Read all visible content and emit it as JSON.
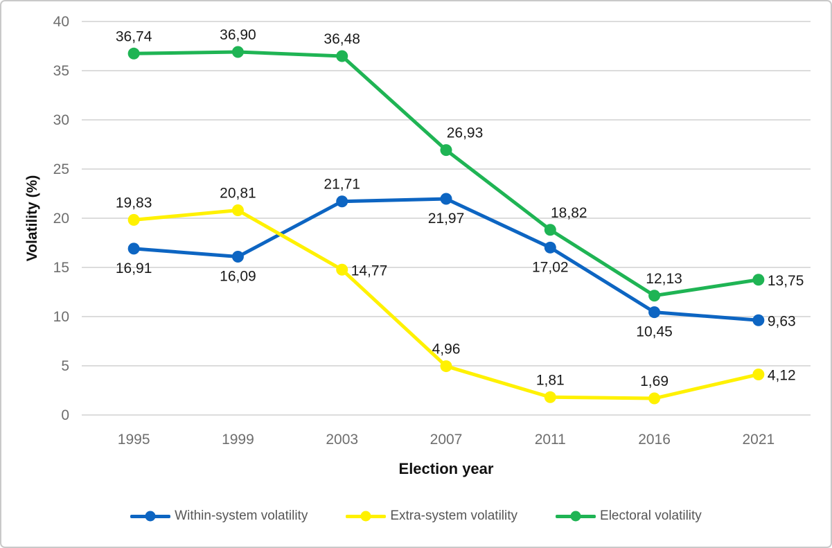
{
  "chart_data": {
    "type": "line",
    "title": "",
    "xlabel": "Election year",
    "ylabel": "Volatility (%)",
    "categories": [
      "1995",
      "1999",
      "2003",
      "2007",
      "2011",
      "2016",
      "2021"
    ],
    "ylim": [
      0,
      40
    ],
    "ytick_step": 5,
    "yticks": [
      0,
      5,
      10,
      15,
      20,
      25,
      30,
      35,
      40
    ],
    "grid": true,
    "legend_position": "bottom",
    "decimal_separator": ",",
    "series": [
      {
        "name": "Within-system volatility",
        "color": "#0d65c2",
        "values": [
          16.91,
          16.09,
          21.71,
          21.97,
          17.02,
          10.45,
          9.63
        ],
        "labels": [
          "16,91",
          "16,09",
          "21,71",
          "21,97",
          "17,02",
          "10,45",
          "9,63"
        ],
        "label_pos": [
          "below",
          "below",
          "above",
          "below",
          "below",
          "below",
          "right"
        ]
      },
      {
        "name": "Extra-system volatility",
        "color": "#fff100",
        "values": [
          19.83,
          20.81,
          14.77,
          4.96,
          1.81,
          1.69,
          4.12
        ],
        "labels": [
          "19,83",
          "20,81",
          "14,77",
          "4,96",
          "1,81",
          "1,69",
          "4,12"
        ],
        "label_pos": [
          "above",
          "above",
          "right",
          "above",
          "above",
          "above",
          "right"
        ]
      },
      {
        "name": "Electoral volatility",
        "color": "#1fb454",
        "values": [
          36.74,
          36.9,
          36.48,
          26.93,
          18.82,
          12.13,
          13.75
        ],
        "labels": [
          "36,74",
          "36,90",
          "36,48",
          "26,93",
          "18,82",
          "12,13",
          "13,75"
        ],
        "label_pos": [
          "above",
          "above",
          "above",
          "above-right",
          "above-right",
          "above-r",
          "right"
        ]
      }
    ],
    "colors": {
      "grid": "#dcdcdc",
      "tick_text": "#6e6e6e",
      "axis_title_text": "#111111",
      "data_label_text": "#1a1a1a",
      "legend_text": "#565656",
      "frame_border": "#c9c9c9",
      "background": "#ffffff"
    }
  }
}
